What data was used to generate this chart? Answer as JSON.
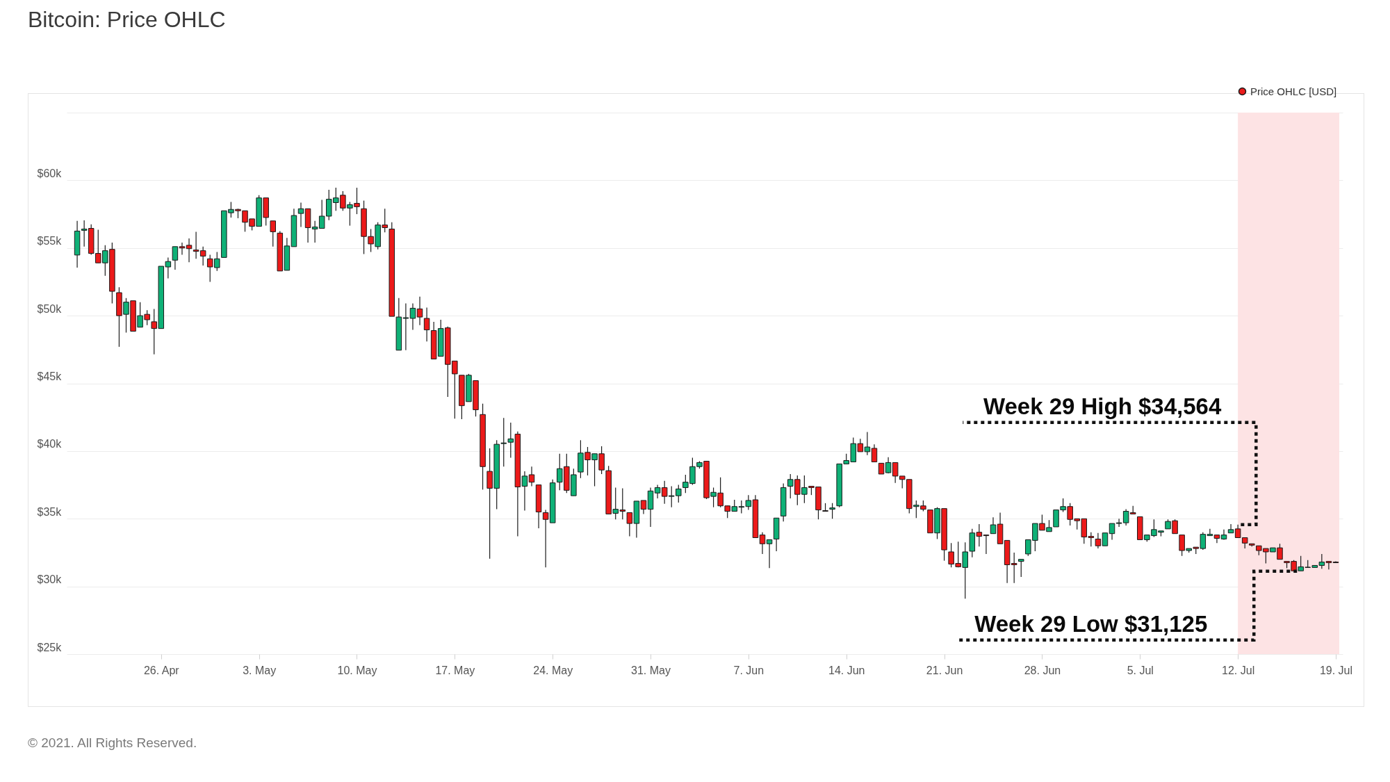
{
  "chart_data": {
    "type": "candlestick",
    "title": "Bitcoin: Price OHLC",
    "xlim": [
      "2021-04-19T12:00",
      "2021-07-19T06:00"
    ],
    "ylim": [
      25000,
      65000
    ],
    "xticks": [
      {
        "value": "2021-04-26",
        "label": "26. Apr"
      },
      {
        "value": "2021-05-03",
        "label": "3. May"
      },
      {
        "value": "2021-05-10",
        "label": "10. May"
      },
      {
        "value": "2021-05-17",
        "label": "17. May"
      },
      {
        "value": "2021-05-24",
        "label": "24. May"
      },
      {
        "value": "2021-05-31",
        "label": "31. May"
      },
      {
        "value": "2021-06-07",
        "label": "7. Jun"
      },
      {
        "value": "2021-06-14",
        "label": "14. Jun"
      },
      {
        "value": "2021-06-21",
        "label": "21. Jun"
      },
      {
        "value": "2021-06-28",
        "label": "28. Jun"
      },
      {
        "value": "2021-07-05",
        "label": "5. Jul"
      },
      {
        "value": "2021-07-12",
        "label": "12. Jul"
      },
      {
        "value": "2021-07-19",
        "label": "19. Jul"
      }
    ],
    "yticks": [
      {
        "value": 25000,
        "label": "$25k"
      },
      {
        "value": 30000,
        "label": "$30k"
      },
      {
        "value": 35000,
        "label": "$35k"
      },
      {
        "value": 40000,
        "label": "$40k"
      },
      {
        "value": 45000,
        "label": "$45k"
      },
      {
        "value": 50000,
        "label": "$50k"
      },
      {
        "value": 55000,
        "label": "$55k"
      },
      {
        "value": 60000,
        "label": "$60k"
      },
      {
        "value": 65000,
        "label": null
      }
    ],
    "grid": "y",
    "legend": "top right",
    "bands": [
      {
        "axis": "x",
        "from": "2021-07-12",
        "to": "2021-07-19T06:00",
        "color": "#fde3e4"
      }
    ],
    "annotations": [
      {
        "text": "Week 29 High $34,564",
        "x": "2021-07-12",
        "y": 34564
      },
      {
        "text": "Week 29 Low $31,125",
        "x": "2021-07-16",
        "y": 31125
      },
      "© 2021. All Rights Reserved."
    ],
    "series": [
      {
        "name": "Price OHLC [USD]",
        "color": "#ea1b1b",
        "x": [
          "2021-04-20T00:00",
          "2021-04-20T12:00",
          "2021-04-21T00:00",
          "2021-04-21T12:00",
          "2021-04-22T00:00",
          "2021-04-22T12:00",
          "2021-04-23T00:00",
          "2021-04-23T12:00",
          "2021-04-24T00:00",
          "2021-04-24T12:00",
          "2021-04-25T00:00",
          "2021-04-25T12:00",
          "2021-04-26T00:00",
          "2021-04-26T12:00",
          "2021-04-27T00:00",
          "2021-04-27T12:00",
          "2021-04-28T00:00",
          "2021-04-28T12:00",
          "2021-04-29T00:00",
          "2021-04-29T12:00",
          "2021-04-30T00:00",
          "2021-04-30T12:00",
          "2021-05-01T00:00",
          "2021-05-01T12:00",
          "2021-05-02T00:00",
          "2021-05-02T12:00",
          "2021-05-03T00:00",
          "2021-05-03T12:00",
          "2021-05-04T00:00",
          "2021-05-04T12:00",
          "2021-05-05T00:00",
          "2021-05-05T12:00",
          "2021-05-06T00:00",
          "2021-05-06T12:00",
          "2021-05-07T00:00",
          "2021-05-07T12:00",
          "2021-05-08T00:00",
          "2021-05-08T12:00",
          "2021-05-09T00:00",
          "2021-05-09T12:00",
          "2021-05-10T00:00",
          "2021-05-10T12:00",
          "2021-05-11T00:00",
          "2021-05-11T12:00",
          "2021-05-12T00:00",
          "2021-05-12T12:00",
          "2021-05-13T00:00",
          "2021-05-13T12:00",
          "2021-05-14T00:00",
          "2021-05-14T12:00",
          "2021-05-15T00:00",
          "2021-05-15T12:00",
          "2021-05-16T00:00",
          "2021-05-16T12:00",
          "2021-05-17T00:00",
          "2021-05-17T12:00",
          "2021-05-18T00:00",
          "2021-05-18T12:00",
          "2021-05-19T00:00",
          "2021-05-19T12:00",
          "2021-05-20T00:00",
          "2021-05-20T12:00",
          "2021-05-21T00:00",
          "2021-05-21T12:00",
          "2021-05-22T00:00",
          "2021-05-22T12:00",
          "2021-05-23T00:00",
          "2021-05-23T12:00",
          "2021-05-24T00:00",
          "2021-05-24T12:00",
          "2021-05-25T00:00",
          "2021-05-25T12:00",
          "2021-05-26T00:00",
          "2021-05-26T12:00",
          "2021-05-27T00:00",
          "2021-05-27T12:00",
          "2021-05-28T00:00",
          "2021-05-28T12:00",
          "2021-05-29T00:00",
          "2021-05-29T12:00",
          "2021-05-30T00:00",
          "2021-05-30T12:00",
          "2021-05-31T00:00",
          "2021-05-31T12:00",
          "2021-06-01T00:00",
          "2021-06-01T12:00",
          "2021-06-02T00:00",
          "2021-06-02T12:00",
          "2021-06-03T00:00",
          "2021-06-03T12:00",
          "2021-06-04T00:00",
          "2021-06-04T12:00",
          "2021-06-05T00:00",
          "2021-06-05T12:00",
          "2021-06-06T00:00",
          "2021-06-06T12:00",
          "2021-06-07T00:00",
          "2021-06-07T12:00",
          "2021-06-08T00:00",
          "2021-06-08T12:00",
          "2021-06-09T00:00",
          "2021-06-09T12:00",
          "2021-06-10T00:00",
          "2021-06-10T12:00",
          "2021-06-11T00:00",
          "2021-06-11T12:00",
          "2021-06-12T00:00",
          "2021-06-12T12:00",
          "2021-06-13T00:00",
          "2021-06-13T12:00",
          "2021-06-14T00:00",
          "2021-06-14T12:00",
          "2021-06-15T00:00",
          "2021-06-15T12:00",
          "2021-06-16T00:00",
          "2021-06-16T12:00",
          "2021-06-17T00:00",
          "2021-06-17T12:00",
          "2021-06-18T00:00",
          "2021-06-18T12:00",
          "2021-06-19T00:00",
          "2021-06-19T12:00",
          "2021-06-20T00:00",
          "2021-06-20T12:00",
          "2021-06-21T00:00",
          "2021-06-21T12:00",
          "2021-06-22T00:00",
          "2021-06-22T12:00",
          "2021-06-23T00:00",
          "2021-06-23T12:00",
          "2021-06-24T00:00",
          "2021-06-24T12:00",
          "2021-06-25T00:00",
          "2021-06-25T12:00",
          "2021-06-26T00:00",
          "2021-06-26T12:00",
          "2021-06-27T00:00",
          "2021-06-27T12:00",
          "2021-06-28T00:00",
          "2021-06-28T12:00",
          "2021-06-29T00:00",
          "2021-06-29T12:00",
          "2021-06-30T00:00",
          "2021-06-30T12:00",
          "2021-07-01T00:00",
          "2021-07-01T12:00",
          "2021-07-02T00:00",
          "2021-07-02T12:00",
          "2021-07-03T00:00",
          "2021-07-03T12:00",
          "2021-07-04T00:00",
          "2021-07-04T12:00",
          "2021-07-05T00:00",
          "2021-07-05T12:00",
          "2021-07-06T00:00",
          "2021-07-06T12:00",
          "2021-07-07T00:00",
          "2021-07-07T12:00",
          "2021-07-08T00:00",
          "2021-07-08T12:00",
          "2021-07-09T00:00",
          "2021-07-09T12:00",
          "2021-07-10T00:00",
          "2021-07-10T12:00",
          "2021-07-11T00:00",
          "2021-07-11T12:00",
          "2021-07-12T00:00",
          "2021-07-12T12:00",
          "2021-07-13T00:00",
          "2021-07-13T12:00",
          "2021-07-14T00:00",
          "2021-07-14T12:00",
          "2021-07-15T00:00",
          "2021-07-15T12:00",
          "2021-07-16T00:00",
          "2021-07-16T12:00",
          "2021-07-17T00:00",
          "2021-07-17T12:00",
          "2021-07-18T00:00",
          "2021-07-18T12:00",
          "2021-07-19T00:00"
        ],
        "colors": [
          "#0fb177",
          "#0fb177",
          "#ec1a1a",
          "#ec1a1a",
          "#0fb177",
          "#ec1a1a",
          "#ec1a1a",
          "#0fb177",
          "#ec1a1a",
          "#0fb177",
          "#ec1a1a",
          "#ec1a1a",
          "#0fb177",
          "#0fb177",
          "#0fb177",
          "#ec1a1a",
          "#ec1a1a",
          "#ec1a1a",
          "#ec1a1a",
          "#ec1a1a",
          "#0fb177",
          "#0fb177",
          "#0fb177",
          "#ec1a1a",
          "#ec1a1a",
          "#ec1a1a",
          "#0fb177",
          "#ec1a1a",
          "#ec1a1a",
          "#ec1a1a",
          "#0fb177",
          "#0fb177",
          "#0fb177",
          "#ec1a1a",
          "#0fb177",
          "#0fb177",
          "#0fb177",
          "#0fb177",
          "#ec1a1a",
          "#0fb177",
          "#ec1a1a",
          "#ec1a1a",
          "#ec1a1a",
          "#0fb177",
          "#ec1a1a",
          "#ec1a1a",
          "#0fb177",
          "#0fb177",
          "#0fb177",
          "#ec1a1a",
          "#ec1a1a",
          "#ec1a1a",
          "#0fb177",
          "#ec1a1a",
          "#ec1a1a",
          "#ec1a1a",
          "#0fb177",
          "#ec1a1a",
          "#ec1a1a",
          "#ec1a1a",
          "#0fb177",
          "#0fb177",
          "#0fb177",
          "#ec1a1a",
          "#0fb177",
          "#ec1a1a",
          "#ec1a1a",
          "#ec1a1a",
          "#0fb177",
          "#0fb177",
          "#ec1a1a",
          "#0fb177",
          "#0fb177",
          "#ec1a1a",
          "#0fb177",
          "#ec1a1a",
          "#ec1a1a",
          "#0fb177",
          "#ec1a1a",
          "#ec1a1a",
          "#0fb177",
          "#ec1a1a",
          "#0fb177",
          "#0fb177",
          "#ec1a1a",
          "#0fb177",
          "#0fb177",
          "#0fb177",
          "#0fb177",
          "#0fb177",
          "#ec1a1a",
          "#0fb177",
          "#ec1a1a",
          "#ec1a1a",
          "#0fb177",
          "#0fb177",
          "#0fb177",
          "#ec1a1a",
          "#ec1a1a",
          "#0fb177",
          "#0fb177",
          "#0fb177",
          "#0fb177",
          "#ec1a1a",
          "#0fb177",
          "#ec1a1a",
          "#ec1a1a",
          "#ec1a1a",
          "#0fb177",
          "#0fb177",
          "#0fb177",
          "#0fb177",
          "#ec1a1a",
          "#0fb177",
          "#ec1a1a",
          "#ec1a1a",
          "#0fb177",
          "#ec1a1a",
          "#ec1a1a",
          "#ec1a1a",
          "#0fb177",
          "#ec1a1a",
          "#ec1a1a",
          "#0fb177",
          "#ec1a1a",
          "#ec1a1a",
          "#ec1a1a",
          "#0fb177",
          "#0fb177",
          "#ec1a1a",
          "#ec1a1a",
          "#0fb177",
          "#ec1a1a",
          "#ec1a1a",
          "#ec1a1a",
          "#0fb177",
          "#0fb177",
          "#0fb177",
          "#ec1a1a",
          "#0fb177",
          "#0fb177",
          "#0fb177",
          "#ec1a1a",
          "#ec1a1a",
          "#ec1a1a",
          "#ec1a1a",
          "#ec1a1a",
          "#0fb177",
          "#0fb177",
          "#0fb177",
          "#0fb177",
          "#ec1a1a",
          "#ec1a1a",
          "#0fb177",
          "#0fb177",
          "#0fb177",
          "#0fb177",
          "#ec1a1a",
          "#ec1a1a",
          "#0fb177",
          "#ec1a1a",
          "#0fb177",
          "#0fb177",
          "#ec1a1a",
          "#0fb177",
          "#0fb177",
          "#ec1a1a",
          "#ec1a1a",
          "#ec1a1a",
          "#ec1a1a",
          "#ec1a1a",
          "#0fb177",
          "#ec1a1a",
          "#ec1a1a",
          "#ec1a1a",
          "#0fb177",
          "#0fb177",
          "#0fb177",
          "#0fb177",
          "#ec1a1a",
          "#ec1a1a"
        ],
        "ohlc": [
          [
            54480,
            57000,
            53550,
            56250
          ],
          [
            56300,
            57040,
            55100,
            56400
          ],
          [
            56450,
            56750,
            54500,
            54600
          ],
          [
            54600,
            56350,
            53900,
            53900
          ],
          [
            53900,
            55200,
            52950,
            54800
          ],
          [
            54900,
            55400,
            50900,
            51800
          ],
          [
            51700,
            52100,
            47700,
            50000
          ],
          [
            50100,
            51300,
            48750,
            51000
          ],
          [
            51100,
            51100,
            48850,
            48850
          ],
          [
            49150,
            51000,
            49150,
            50000
          ],
          [
            50100,
            50400,
            49300,
            49700
          ],
          [
            49550,
            50500,
            47150,
            49050
          ],
          [
            49050,
            53650,
            49050,
            53650
          ],
          [
            53600,
            54300,
            52750,
            54000
          ],
          [
            54100,
            55100,
            53400,
            55100
          ],
          [
            55100,
            55400,
            54500,
            55000
          ],
          [
            55200,
            55700,
            53950,
            54950
          ],
          [
            54850,
            56200,
            54200,
            54750
          ],
          [
            54800,
            55100,
            53700,
            54400
          ],
          [
            54200,
            54500,
            52500,
            53600
          ],
          [
            53550,
            54700,
            53300,
            54200
          ],
          [
            54300,
            57750,
            54300,
            57750
          ],
          [
            57600,
            58400,
            57250,
            57850
          ],
          [
            57850,
            57900,
            57200,
            57750
          ],
          [
            57750,
            57750,
            56200,
            56900
          ],
          [
            57150,
            57150,
            56300,
            56600
          ],
          [
            56600,
            58900,
            56600,
            58700
          ],
          [
            58700,
            58700,
            56650,
            57250
          ],
          [
            57000,
            57000,
            55100,
            56200
          ],
          [
            56100,
            56250,
            53300,
            53300
          ],
          [
            53350,
            55750,
            53350,
            55150
          ],
          [
            55100,
            57900,
            55100,
            57400
          ],
          [
            57550,
            58350,
            56550,
            57900
          ],
          [
            57900,
            57900,
            55400,
            56500
          ],
          [
            56400,
            57000,
            55400,
            56550
          ],
          [
            56450,
            58550,
            56450,
            57350
          ],
          [
            57350,
            59300,
            57050,
            58600
          ],
          [
            58350,
            59450,
            57750,
            58700
          ],
          [
            58900,
            59200,
            57750,
            57950
          ],
          [
            57950,
            58400,
            56650,
            58200
          ],
          [
            58300,
            59450,
            57500,
            58050
          ],
          [
            57900,
            58500,
            54550,
            55850
          ],
          [
            55850,
            56400,
            54700,
            55300
          ],
          [
            55100,
            56900,
            54900,
            56700
          ],
          [
            56700,
            57900,
            56150,
            56500
          ],
          [
            56400,
            56900,
            49950,
            49950
          ],
          [
            47450,
            51300,
            47450,
            49900
          ],
          [
            49800,
            50900,
            47450,
            49850
          ],
          [
            49800,
            50900,
            48950,
            50550
          ],
          [
            50500,
            51400,
            49300,
            49900
          ],
          [
            49800,
            50600,
            48100,
            48950
          ],
          [
            48900,
            49550,
            46800,
            46800
          ],
          [
            47000,
            49700,
            47000,
            49050
          ],
          [
            49100,
            49200,
            44000,
            46400
          ],
          [
            46650,
            46650,
            42400,
            45700
          ],
          [
            45600,
            45600,
            42350,
            43350
          ],
          [
            43650,
            45700,
            43650,
            45600
          ],
          [
            45200,
            45200,
            42550,
            43050
          ],
          [
            42700,
            43500,
            37150,
            38850
          ],
          [
            38500,
            40200,
            32050,
            37250
          ],
          [
            37250,
            40800,
            35700,
            40500
          ],
          [
            40550,
            42450,
            38850,
            40600
          ],
          [
            40650,
            42100,
            39500,
            40900
          ],
          [
            41250,
            41450,
            33700,
            37350
          ],
          [
            37400,
            38500,
            35600,
            38150
          ],
          [
            38250,
            38850,
            37400,
            37700
          ],
          [
            37500,
            37500,
            34300,
            35500
          ],
          [
            35450,
            35650,
            31400,
            34950
          ],
          [
            34700,
            37900,
            34700,
            37650
          ],
          [
            37700,
            39800,
            37100,
            38700
          ],
          [
            38850,
            39800,
            36900,
            37100
          ],
          [
            36700,
            38700,
            36700,
            38250
          ],
          [
            38450,
            40800,
            38000,
            39850
          ],
          [
            39900,
            40300,
            38200,
            39350
          ],
          [
            39350,
            39800,
            37400,
            39800
          ],
          [
            39800,
            40350,
            38300,
            38600
          ],
          [
            38550,
            38900,
            35350,
            35350
          ],
          [
            35400,
            37300,
            34950,
            35700
          ],
          [
            35650,
            37250,
            34950,
            35550
          ],
          [
            35450,
            35450,
            33700,
            34650
          ],
          [
            34650,
            36300,
            33600,
            36300
          ],
          [
            36350,
            36350,
            35350,
            35700
          ],
          [
            35700,
            37300,
            34400,
            37050
          ],
          [
            36900,
            37500,
            36500,
            37300
          ],
          [
            37300,
            37800,
            36100,
            36650
          ],
          [
            36650,
            37400,
            35850,
            36700
          ],
          [
            36700,
            37500,
            36200,
            37200
          ],
          [
            37300,
            38250,
            36900,
            37700
          ],
          [
            37600,
            39500,
            37500,
            38850
          ],
          [
            38850,
            39250,
            38700,
            39150
          ],
          [
            39250,
            39250,
            36450,
            36550
          ],
          [
            36650,
            37300,
            35850,
            36950
          ],
          [
            36900,
            38050,
            35850,
            35950
          ],
          [
            35950,
            35950,
            35050,
            35550
          ],
          [
            35550,
            36400,
            35550,
            35900
          ],
          [
            35850,
            36350,
            35400,
            35900
          ],
          [
            35900,
            36750,
            35650,
            36350
          ],
          [
            36400,
            36750,
            33600,
            33600
          ],
          [
            33800,
            34000,
            32400,
            33150
          ],
          [
            33150,
            33450,
            31350,
            33450
          ],
          [
            33500,
            35050,
            32600,
            35050
          ],
          [
            35200,
            37600,
            34800,
            37300
          ],
          [
            37400,
            38300,
            36500,
            37900
          ],
          [
            37900,
            38200,
            36000,
            36800
          ],
          [
            36800,
            38200,
            36150,
            37300
          ],
          [
            37400,
            37400,
            36750,
            37300
          ],
          [
            37350,
            37350,
            34950,
            35650
          ],
          [
            35600,
            36150,
            35550,
            35550
          ],
          [
            35700,
            36150,
            35000,
            35800
          ],
          [
            35950,
            39050,
            35850,
            39050
          ],
          [
            39050,
            39800,
            39050,
            39300
          ],
          [
            39200,
            41000,
            39200,
            40550
          ],
          [
            40550,
            40900,
            39950,
            39950
          ],
          [
            39950,
            41400,
            39700,
            40300
          ],
          [
            40200,
            40500,
            39200,
            39200
          ],
          [
            39100,
            39100,
            38300,
            38300
          ],
          [
            38400,
            39550,
            38350,
            39150
          ],
          [
            39150,
            39150,
            37650,
            38150
          ],
          [
            38150,
            38150,
            37250,
            37900
          ],
          [
            37900,
            37900,
            35400,
            35750
          ],
          [
            35900,
            36350,
            35050,
            36000
          ],
          [
            35950,
            36350,
            35550,
            35700
          ],
          [
            35650,
            35650,
            33950,
            33950
          ],
          [
            33950,
            35850,
            33500,
            35750
          ],
          [
            35750,
            35750,
            31900,
            32700
          ],
          [
            32550,
            33200,
            31400,
            31650
          ],
          [
            31700,
            33300,
            31400,
            31450
          ],
          [
            31400,
            33250,
            29100,
            32550
          ],
          [
            32600,
            34250,
            32150,
            33950
          ],
          [
            34000,
            34600,
            32950,
            33700
          ],
          [
            33800,
            33800,
            32400,
            33750
          ],
          [
            33900,
            35100,
            33900,
            34550
          ],
          [
            34600,
            35450,
            33150,
            33150
          ],
          [
            33400,
            33400,
            30250,
            31600
          ],
          [
            31700,
            32500,
            30250,
            31600
          ],
          [
            31850,
            32000,
            30700,
            32000
          ],
          [
            32400,
            33450,
            32250,
            33450
          ],
          [
            33400,
            34650,
            32600,
            34650
          ],
          [
            34650,
            35300,
            34150,
            34150
          ],
          [
            34050,
            34900,
            34050,
            34350
          ],
          [
            34400,
            35650,
            34400,
            35650
          ],
          [
            35650,
            36500,
            35500,
            35900
          ],
          [
            35900,
            36150,
            34500,
            34950
          ],
          [
            35000,
            35000,
            34200,
            34850
          ],
          [
            35000,
            35000,
            33150,
            33650
          ],
          [
            33700,
            34000,
            32950,
            33600
          ],
          [
            33500,
            33950,
            32800,
            33000
          ],
          [
            33000,
            33950,
            33000,
            33950
          ],
          [
            33900,
            34650,
            33450,
            34650
          ],
          [
            34650,
            35000,
            34400,
            34700
          ],
          [
            34700,
            35700,
            34500,
            35550
          ],
          [
            35450,
            35950,
            35350,
            35350
          ],
          [
            35150,
            35150,
            33450,
            33450
          ],
          [
            33450,
            33800,
            33300,
            33800
          ],
          [
            33750,
            34950,
            33650,
            34200
          ],
          [
            34000,
            34100,
            33700,
            34100
          ],
          [
            34250,
            34950,
            34250,
            34800
          ],
          [
            34850,
            34950,
            33900,
            33900
          ],
          [
            33800,
            33800,
            32250,
            32650
          ],
          [
            32650,
            32800,
            32500,
            32800
          ],
          [
            32900,
            32900,
            32400,
            32800
          ],
          [
            32800,
            34000,
            32700,
            33850
          ],
          [
            33750,
            34250,
            33750,
            33850
          ],
          [
            33800,
            33800,
            33200,
            33550
          ],
          [
            33500,
            34200,
            33450,
            33800
          ],
          [
            33950,
            34600,
            33950,
            34200
          ],
          [
            34250,
            34564,
            33600,
            33600
          ],
          [
            33600,
            33600,
            32800,
            33200
          ],
          [
            33150,
            33150,
            32950,
            33050
          ],
          [
            33000,
            33000,
            32300,
            32650
          ],
          [
            32800,
            32800,
            31700,
            32550
          ],
          [
            32550,
            32850,
            32550,
            32850
          ],
          [
            32850,
            33150,
            32000,
            32000
          ],
          [
            31850,
            31850,
            31350,
            31750
          ],
          [
            31850,
            31950,
            31125,
            31150
          ],
          [
            31150,
            32250,
            31150,
            31450
          ],
          [
            31400,
            31950,
            31400,
            31420
          ],
          [
            31400,
            31550,
            31400,
            31550
          ],
          [
            31550,
            32400,
            31300,
            31800
          ],
          [
            31850,
            31850,
            31250,
            31750
          ],
          [
            31800,
            31850,
            31750,
            31750
          ]
        ]
      }
    ]
  }
}
